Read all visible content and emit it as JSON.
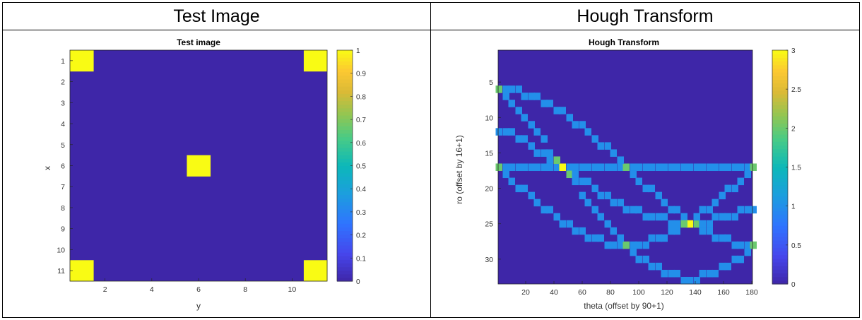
{
  "table": {
    "headers": [
      "Test Image",
      "Hough Transform"
    ]
  },
  "chart_data": [
    {
      "type": "heatmap",
      "title": "Test image",
      "xlabel": "y",
      "ylabel": "x",
      "x_ticks": [
        2,
        4,
        6,
        8,
        10
      ],
      "y_ticks": [
        1,
        2,
        3,
        4,
        5,
        6,
        7,
        8,
        9,
        10,
        11
      ],
      "xlim": [
        0.5,
        11.5
      ],
      "ylim": [
        0.5,
        11.5
      ],
      "colormap": "parula",
      "clim": [
        0,
        1
      ],
      "colorbar_ticks": [
        "0",
        "0.1",
        "0.2",
        "0.3",
        "0.4",
        "0.5",
        "0.6",
        "0.7",
        "0.8",
        "0.9",
        "1"
      ],
      "background_value": 0,
      "cells": [
        {
          "x": 1,
          "y": 1,
          "value": 1
        },
        {
          "x": 1,
          "y": 11,
          "value": 1
        },
        {
          "x": 6,
          "y": 6,
          "value": 1
        },
        {
          "x": 11,
          "y": 1,
          "value": 1
        },
        {
          "x": 11,
          "y": 11,
          "value": 1
        }
      ]
    },
    {
      "type": "heatmap",
      "title": "Hough Transform",
      "xlabel": "theta (offset by 90+1)",
      "ylabel": "ro (offset by 16+1)",
      "x_ticks": [
        20,
        40,
        60,
        80,
        100,
        120,
        140,
        160,
        180
      ],
      "y_ticks": [
        5,
        10,
        15,
        20,
        25,
        30
      ],
      "xlim": [
        0.5,
        180.5
      ],
      "ylim": [
        0.5,
        33.5
      ],
      "colormap": "parula",
      "clim": [
        0,
        3
      ],
      "colorbar_ticks": [
        "0",
        "0.5",
        "1",
        "1.5",
        "2",
        "2.5",
        "3"
      ],
      "background_value": 0,
      "theta_step": 4.5,
      "sinusoids": [
        {
          "x": 0,
          "y": 0
        },
        {
          "x": 0,
          "y": 10
        },
        {
          "x": 5,
          "y": 5
        },
        {
          "x": 10,
          "y": 0
        },
        {
          "x": 10,
          "y": 10
        }
      ]
    }
  ]
}
